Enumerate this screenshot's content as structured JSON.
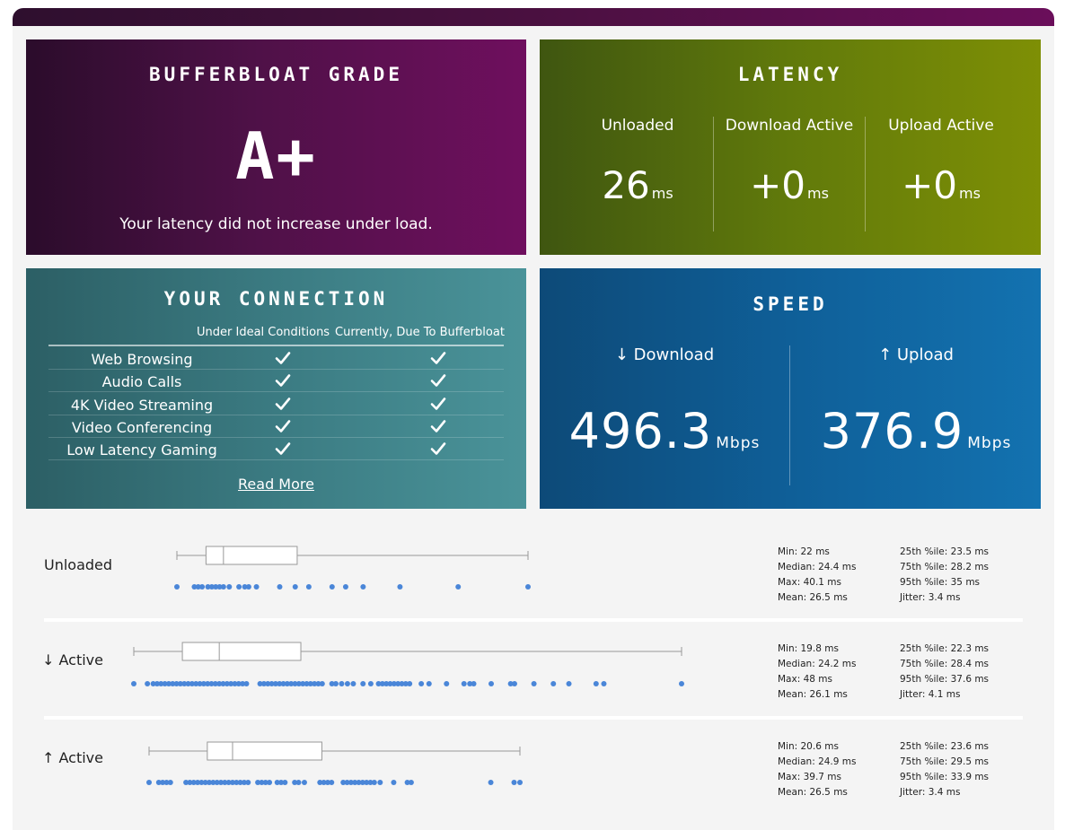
{
  "grade": {
    "title": "BUFFERBLOAT GRADE",
    "value": "A+",
    "message": "Your latency did not increase under load."
  },
  "latency": {
    "title": "LATENCY",
    "columns": [
      {
        "label": "Unloaded",
        "value": "26",
        "unit": "ms"
      },
      {
        "label": "Download Active",
        "value": "+0",
        "unit": "ms"
      },
      {
        "label": "Upload Active",
        "value": "+0",
        "unit": "ms"
      }
    ]
  },
  "connection": {
    "title": "YOUR CONNECTION",
    "col_ideal": "Under Ideal Conditions",
    "col_current": "Currently, Due To Bufferbloat",
    "rows": [
      {
        "name": "Web Browsing",
        "ideal": true,
        "current": true
      },
      {
        "name": "Audio Calls",
        "ideal": true,
        "current": true
      },
      {
        "name": "4K Video Streaming",
        "ideal": true,
        "current": true
      },
      {
        "name": "Video Conferencing",
        "ideal": true,
        "current": true
      },
      {
        "name": "Low Latency Gaming",
        "ideal": true,
        "current": true
      }
    ],
    "read_more": "Read More"
  },
  "speed": {
    "title": "SPEED",
    "download": {
      "label": "↓ Download",
      "value": "496.3",
      "unit": "Mbps"
    },
    "upload": {
      "label": "↑ Upload",
      "value": "376.9",
      "unit": "Mbps"
    }
  },
  "stats": [
    {
      "label": "Unloaded",
      "min": "Min: 22 ms",
      "median": "Median: 24.4 ms",
      "max": "Max: 40.1 ms",
      "mean": "Mean: 26.5 ms",
      "p25": "25th %ile: 23.5 ms",
      "p75": "75th %ile: 28.2 ms",
      "p95": "95th %ile: 35 ms",
      "jitter": "Jitter: 3.4 ms",
      "box": {
        "min": 22,
        "q1": 23.5,
        "median": 24.4,
        "q3": 28.2,
        "max": 40.1
      },
      "samples": [
        22,
        22.9,
        23.1,
        23.3,
        23.6,
        23.8,
        24.0,
        24.2,
        24.4,
        24.7,
        25.2,
        25.5,
        25.7,
        26.1,
        27.3,
        28.1,
        28.8,
        30.0,
        30.7,
        31.6,
        33.5,
        36.5,
        40.1
      ]
    },
    {
      "label": "↓ Active",
      "min": "Min: 19.8 ms",
      "median": "Median: 24.2 ms",
      "max": "Max: 48 ms",
      "mean": "Mean: 26.1 ms",
      "p25": "25th %ile: 22.3 ms",
      "p75": "75th %ile: 28.4 ms",
      "p95": "95th %ile: 37.6 ms",
      "jitter": "Jitter: 4.1 ms",
      "box": {
        "min": 19.8,
        "q1": 22.3,
        "median": 24.2,
        "q3": 28.4,
        "max": 48
      },
      "samples": [
        19.8,
        20.5,
        20.8,
        21.0,
        21.2,
        21.4,
        21.6,
        21.8,
        22.0,
        22.2,
        22.4,
        22.6,
        22.8,
        23.0,
        23.2,
        23.4,
        23.6,
        23.8,
        24.0,
        24.2,
        24.4,
        24.6,
        24.8,
        25.0,
        25.2,
        25.4,
        25.6,
        26.3,
        26.5,
        26.7,
        26.9,
        27.1,
        27.3,
        27.5,
        27.7,
        27.9,
        28.1,
        28.3,
        28.5,
        28.7,
        28.9,
        29.1,
        29.3,
        29.5,
        30.0,
        30.2,
        30.5,
        30.8,
        31.1,
        31.6,
        32.0,
        32.4,
        32.6,
        32.8,
        33.0,
        33.2,
        33.4,
        33.6,
        33.8,
        34.0,
        34.6,
        35.0,
        35.9,
        36.8,
        37.1,
        37.3,
        38.2,
        39.2,
        39.4,
        40.4,
        41.4,
        42.2,
        43.6,
        44.0,
        48.0
      ]
    },
    {
      "label": "↑ Active",
      "min": "Min: 20.6 ms",
      "median": "Median: 24.9 ms",
      "max": "Max: 39.7 ms",
      "mean": "Mean: 26.5 ms",
      "p25": "25th %ile: 23.6 ms",
      "p75": "75th %ile: 29.5 ms",
      "p95": "95th %ile: 33.9 ms",
      "jitter": "Jitter: 3.4 ms",
      "box": {
        "min": 20.6,
        "q1": 23.6,
        "median": 24.9,
        "q3": 29.5,
        "max": 39.7
      },
      "samples": [
        20.6,
        21.1,
        21.3,
        21.5,
        21.7,
        22.5,
        22.7,
        22.9,
        23.1,
        23.3,
        23.5,
        23.7,
        23.9,
        24.1,
        24.3,
        24.5,
        24.7,
        24.9,
        25.1,
        25.3,
        25.5,
        25.7,
        26.2,
        26.4,
        26.6,
        26.8,
        27.2,
        27.4,
        27.6,
        28.1,
        28.3,
        28.6,
        29.4,
        29.6,
        29.8,
        30.0,
        30.6,
        30.8,
        31.0,
        31.2,
        31.4,
        31.6,
        31.8,
        32.0,
        32.2,
        32.5,
        33.2,
        33.9,
        34.1,
        38.2,
        39.4,
        39.7
      ]
    }
  ]
}
